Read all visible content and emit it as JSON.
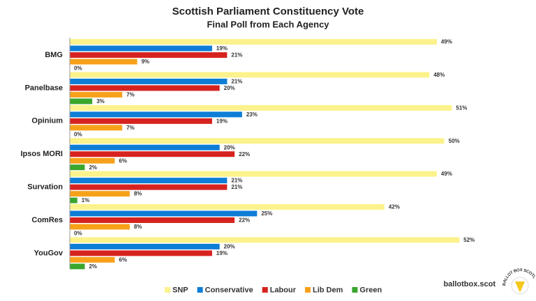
{
  "chart_data": {
    "type": "hbar",
    "title": "Scottish Parliament Constituency Vote",
    "subtitle": "Final Poll from Each Agency",
    "categories": [
      "BMG",
      "Panelbase",
      "Opinium",
      "Ipsos MORI",
      "Survation",
      "ComRes",
      "YouGov"
    ],
    "series": [
      {
        "name": "SNP",
        "color": "#fcf28c",
        "values": [
          49,
          48,
          51,
          50,
          49,
          42,
          52
        ],
        "value_labels": [
          "49%",
          "48%",
          "51%",
          "50%",
          "49%",
          "42%",
          "52%"
        ]
      },
      {
        "name": "Conservative",
        "color": "#0e7dd6",
        "values": [
          19,
          21,
          23,
          20,
          21,
          25,
          20
        ],
        "value_labels": [
          "19%",
          "21%",
          "23%",
          "20%",
          "21%",
          "25%",
          "20%"
        ]
      },
      {
        "name": "Labour",
        "color": "#d7231f",
        "values": [
          21,
          20,
          19,
          22,
          21,
          22,
          19
        ],
        "value_labels": [
          "21%",
          "20%",
          "19%",
          "22%",
          "21%",
          "22%",
          "19%"
        ]
      },
      {
        "name": "Lib Dem",
        "color": "#f7a11b",
        "values": [
          9,
          7,
          7,
          6,
          8,
          8,
          6
        ],
        "value_labels": [
          "9%",
          "7%",
          "7%",
          "6%",
          "8%",
          "8%",
          "6%"
        ]
      },
      {
        "name": "Green",
        "color": "#3aa62d",
        "values": [
          0,
          3,
          0,
          2,
          1,
          0,
          2
        ],
        "value_labels": [
          "0%",
          "3%",
          "0%",
          "2%",
          "1%",
          "0%",
          "2%"
        ]
      }
    ],
    "xlim": [
      0,
      60
    ],
    "source": "ballotbox.scot",
    "logo": "BALLOT BOX SCOTLAND"
  }
}
